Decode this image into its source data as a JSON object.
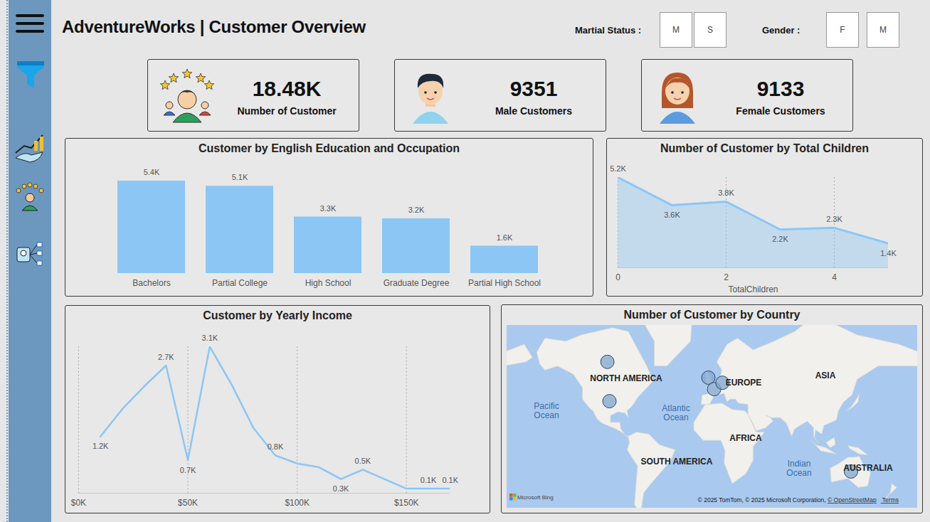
{
  "header": {
    "title": "AdventureWorks | Customer Overview"
  },
  "slicers": [
    {
      "label": "Martial Status :",
      "options": [
        "M",
        "S"
      ]
    },
    {
      "label": "Gender :",
      "options": [
        "F",
        "M"
      ]
    }
  ],
  "kpis": [
    {
      "value": 18480,
      "label": "18.48K",
      "caption": "Number of Customer"
    },
    {
      "value": 9351,
      "caption": "Male Customers"
    },
    {
      "value": 9133,
      "caption": "Female Customers"
    }
  ],
  "chart_data": [
    {
      "type": "bar",
      "title": "Customer by English Education and Occupation",
      "categories": [
        "Bachelors",
        "Partial College",
        "High School",
        "Graduate Degree",
        "Partial High School"
      ],
      "values": [
        5400,
        5100,
        3300,
        3200,
        1600
      ],
      "value_labels": [
        "5.4K",
        "5.1K",
        "3.3K",
        "3.2K",
        "1.6K"
      ],
      "color": "#8cc6f5",
      "data_labels": true,
      "tick_labels": "x"
    },
    {
      "type": "area",
      "title": "Number of Customer by Total Children",
      "x": [
        0,
        1,
        2,
        3,
        4,
        5
      ],
      "values": [
        5200,
        3600,
        3800,
        2200,
        2300,
        1400
      ],
      "value_labels": [
        "5.2K",
        "3.6K",
        "3.8K",
        "2.2K",
        "2.3K",
        "1.4K"
      ],
      "xlabel": "TotalChildren",
      "xlim": [
        0,
        5
      ],
      "xticks": [
        0,
        2,
        4
      ],
      "color": "#8cc6f5",
      "grid": true,
      "data_labels": true,
      "tick_labels": "x"
    },
    {
      "type": "line",
      "title": "Customer by Yearly Income",
      "x": [
        10000,
        20000,
        30000,
        40000,
        50000,
        60000,
        70000,
        80000,
        90000,
        100000,
        110000,
        120000,
        130000,
        150000,
        160000,
        170000
      ],
      "values": [
        1200,
        1780,
        2260,
        2700,
        700,
        3100,
        2300,
        1380,
        800,
        630,
        550,
        300,
        500,
        100,
        100,
        100
      ],
      "value_labels": [
        "1.2K",
        null,
        null,
        "2.7K",
        "0.7K",
        "3.1K",
        null,
        null,
        "0.8K",
        null,
        null,
        "0.3K",
        "0.5K",
        null,
        "0.1K",
        "0.1K"
      ],
      "xlim": [
        0,
        170000
      ],
      "xticks": [
        {
          "value": 0,
          "label": "$0K"
        },
        {
          "value": 50000,
          "label": "$50K"
        },
        {
          "value": 100000,
          "label": "$100K"
        },
        {
          "value": 150000,
          "label": "$150K"
        }
      ],
      "color": "#8cc6f5",
      "grid": true,
      "data_labels": true,
      "tick_labels": "x"
    },
    {
      "type": "map",
      "title": "Number of Customer by Country",
      "points": [
        {
          "lon": -100,
          "lat": 62
        },
        {
          "lon": -98,
          "lat": 38.5
        },
        {
          "lon": -3,
          "lat": 54
        },
        {
          "lon": 2.5,
          "lat": 47
        },
        {
          "lon": 10.5,
          "lat": 51
        },
        {
          "lon": 134,
          "lat": -25
        }
      ],
      "region_labels": [
        "NORTH AMERICA",
        "EUROPE",
        "ASIA",
        "AFRICA",
        "SOUTH AMERICA",
        "AUSTRALIA"
      ],
      "ocean_labels": [
        "Pacific Ocean",
        "Atlantic Ocean",
        "Indian Ocean"
      ],
      "logo": "Microsoft Bing",
      "attribution": [
        "© 2025 TomTom, © 2025 Microsoft Corporation, ",
        "© OpenStreetMap",
        "Terms"
      ],
      "color": "#7fa6cf"
    }
  ]
}
